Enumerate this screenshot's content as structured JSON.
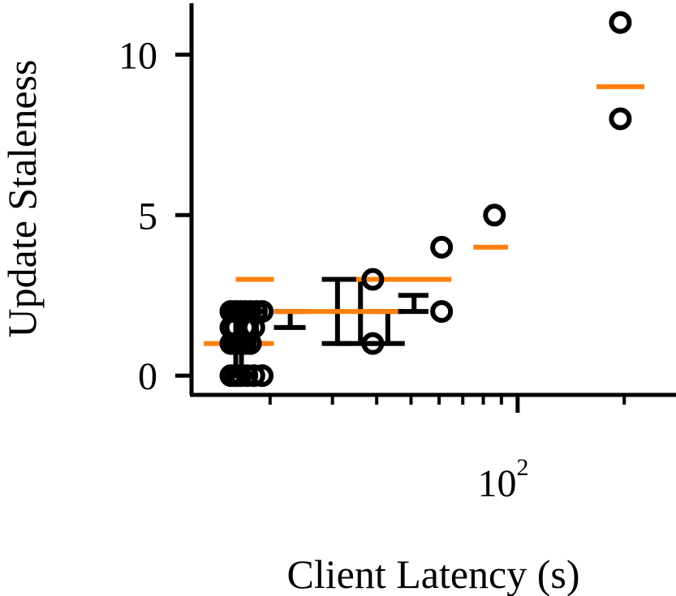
{
  "chart_data": {
    "type": "scatter",
    "title": "",
    "xlabel": "Client Latency (s)",
    "ylabel": "Update Staleness",
    "x_scale": "log",
    "xlim": [
      12,
      280
    ],
    "ylim": [
      -0.6,
      11.6
    ],
    "y_ticks": [
      0,
      5,
      10
    ],
    "y_tick_labels": [
      "0",
      "5",
      "10"
    ],
    "x_major_ticks": [
      100
    ],
    "x_major_tick_base": "10",
    "x_major_tick_exponent": "2",
    "x_minor_ticks": [
      20,
      30,
      40,
      50,
      60,
      70,
      80,
      90,
      200
    ],
    "grid": false,
    "legend": "none",
    "colors": {
      "points": "#000000",
      "median": "#ff7f0e",
      "axes": "#000000"
    },
    "points": [
      {
        "x": 15.5,
        "y": 0
      },
      {
        "x": 16.0,
        "y": 0
      },
      {
        "x": 16.5,
        "y": 0
      },
      {
        "x": 17.2,
        "y": 0
      },
      {
        "x": 18.0,
        "y": 0
      },
      {
        "x": 19.0,
        "y": 0
      },
      {
        "x": 15.5,
        "y": 2
      },
      {
        "x": 16.0,
        "y": 2
      },
      {
        "x": 16.5,
        "y": 2
      },
      {
        "x": 17.0,
        "y": 2
      },
      {
        "x": 17.6,
        "y": 2
      },
      {
        "x": 18.3,
        "y": 2
      },
      {
        "x": 19.0,
        "y": 2
      },
      {
        "x": 15.5,
        "y": 1
      },
      {
        "x": 16.0,
        "y": 1
      },
      {
        "x": 16.5,
        "y": 1
      },
      {
        "x": 17.0,
        "y": 1
      },
      {
        "x": 17.6,
        "y": 1
      },
      {
        "x": 15.5,
        "y": 1.5
      },
      {
        "x": 16.0,
        "y": 1.5
      },
      {
        "x": 17.0,
        "y": 1.5
      },
      {
        "x": 18.0,
        "y": 1.5
      },
      {
        "x": 39,
        "y": 3
      },
      {
        "x": 39,
        "y": 1
      },
      {
        "x": 61,
        "y": 4
      },
      {
        "x": 61,
        "y": 2
      },
      {
        "x": 86,
        "y": 5
      },
      {
        "x": 195,
        "y": 11
      },
      {
        "x": 195,
        "y": 8
      }
    ],
    "medians": [
      {
        "x_start": 13.0,
        "x_end": 20.5,
        "y": 1
      },
      {
        "x_start": 16.0,
        "x_end": 20.5,
        "y": 3
      },
      {
        "x_start": 20.5,
        "x_end": 46,
        "y": 2
      },
      {
        "x_start": 35,
        "x_end": 65,
        "y": 3
      },
      {
        "x_start": 75,
        "x_end": 94,
        "y": 4
      },
      {
        "x_start": 167,
        "x_end": 228,
        "y": 9
      }
    ],
    "whiskers": [
      {
        "x_center": 16.0,
        "x_start": 15.0,
        "x_end": 17.2,
        "y_low": 0,
        "y_high": 2
      },
      {
        "x_center": 16.6,
        "x_start": 16.0,
        "x_end": 17.8,
        "y_low": 0,
        "y_high": 2
      },
      {
        "x_center": 18.3,
        "x_start": 17.2,
        "x_end": 19.5,
        "y_low": 1,
        "y_high": 2
      },
      {
        "x_center": 22.8,
        "x_start": 20.5,
        "x_end": 25.2,
        "y_low": 1.5,
        "y_high": 2
      },
      {
        "x_center": 31,
        "x_start": 28,
        "x_end": 34,
        "y_low": 1,
        "y_high": 3
      },
      {
        "x_center": 36,
        "x_start": 31,
        "x_end": 41,
        "y_low": 1,
        "y_high": 3
      },
      {
        "x_center": 43,
        "x_start": 38,
        "x_end": 48,
        "y_low": 1,
        "y_high": 2
      },
      {
        "x_center": 51,
        "x_start": 46,
        "x_end": 56,
        "y_low": 2,
        "y_high": 2.5
      }
    ]
  }
}
